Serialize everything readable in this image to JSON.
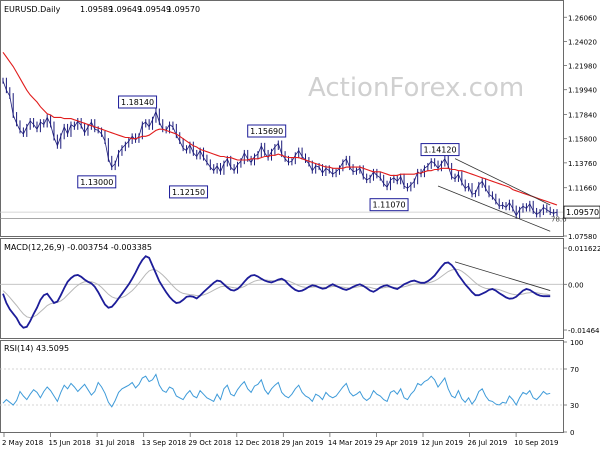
{
  "chart_data": [
    {
      "type": "line",
      "panel": "price",
      "title": "EURUSD.Daily",
      "ohlc": {
        "open": "1.09589",
        "high": "1.09649",
        "low": "1.09549",
        "close": "1.09570"
      },
      "current_price_label": "1.09570",
      "watermark": "ActionForex.com",
      "ylim": [
        1.0758,
        1.2718
      ],
      "y_ticks": [
        "1.26060",
        "1.24020",
        "1.21980",
        "1.19940",
        "1.17840",
        "1.15800",
        "1.13760",
        "1.11660",
        "1.09570",
        "1.07580"
      ],
      "series": [
        {
          "name": "",
          "values": [
            1.207,
            1.199,
            1.194,
            1.178,
            1.171,
            1.165,
            1.162,
            1.168,
            1.173,
            1.17,
            1.166,
            1.172,
            1.17,
            1.176,
            1.17,
            1.159,
            1.152,
            1.16,
            1.168,
            1.162,
            1.17,
            1.168,
            1.173,
            1.169,
            1.163,
            1.168,
            1.172,
            1.166,
            1.165,
            1.162,
            1.156,
            1.141,
            1.134,
            1.137,
            1.146,
            1.15,
            1.153,
            1.156,
            1.16,
            1.157,
            1.16,
            1.17,
            1.172,
            1.168,
            1.174,
            1.181,
            1.172,
            1.166,
            1.165,
            1.17,
            1.168,
            1.161,
            1.156,
            1.15,
            1.148,
            1.153,
            1.146,
            1.143,
            1.148,
            1.142,
            1.138,
            1.134,
            1.131,
            1.135,
            1.13,
            1.137,
            1.141,
            1.134,
            1.131,
            1.136,
            1.139,
            1.146,
            1.141,
            1.138,
            1.143,
            1.145,
            1.152,
            1.146,
            1.142,
            1.147,
            1.151,
            1.154,
            1.145,
            1.141,
            1.138,
            1.139,
            1.144,
            1.148,
            1.143,
            1.14,
            1.137,
            1.131,
            1.135,
            1.134,
            1.129,
            1.133,
            1.131,
            1.128,
            1.13,
            1.133,
            1.138,
            1.141,
            1.134,
            1.13,
            1.131,
            1.133,
            1.126,
            1.123,
            1.125,
            1.13,
            1.127,
            1.125,
            1.12,
            1.117,
            1.123,
            1.125,
            1.122,
            1.126,
            1.118,
            1.116,
            1.119,
            1.122,
            1.13,
            1.128,
            1.133,
            1.135,
            1.139,
            1.137,
            1.133,
            1.137,
            1.141,
            1.135,
            1.126,
            1.124,
            1.128,
            1.121,
            1.116,
            1.118,
            1.111,
            1.112,
            1.119,
            1.122,
            1.116,
            1.111,
            1.109,
            1.105,
            1.101,
            1.102,
            1.1,
            1.104,
            1.099,
            1.093,
            1.098,
            1.101,
            1.099,
            1.103,
            1.097,
            1.094,
            1.096,
            1.1,
            1.098,
            1.096,
            1.095,
            1.096
          ]
        },
        {
          "name": "",
          "values": [
            1.231,
            1.227,
            1.223,
            1.219,
            1.214,
            1.209,
            1.204,
            1.199,
            1.195,
            1.192,
            1.189,
            1.185,
            1.182,
            1.179,
            1.178,
            1.176,
            1.176,
            1.176,
            1.175,
            1.175,
            1.175,
            1.174,
            1.173,
            1.172,
            1.171,
            1.17,
            1.169,
            1.168,
            1.167,
            1.166,
            1.165,
            1.164,
            1.163,
            1.162,
            1.161,
            1.16,
            1.159,
            1.159,
            1.158,
            1.158,
            1.159,
            1.16,
            1.16,
            1.161,
            1.163,
            1.165,
            1.166,
            1.166,
            1.165,
            1.164,
            1.163,
            1.162,
            1.16,
            1.158,
            1.156,
            1.154,
            1.152,
            1.151,
            1.149,
            1.148,
            1.147,
            1.146,
            1.145,
            1.144,
            1.143,
            1.143,
            1.142,
            1.142,
            1.141,
            1.14,
            1.14,
            1.14,
            1.14,
            1.141,
            1.141,
            1.141,
            1.142,
            1.143,
            1.143,
            1.144,
            1.144,
            1.145,
            1.144,
            1.143,
            1.142,
            1.142,
            1.142,
            1.142,
            1.141,
            1.14,
            1.139,
            1.138,
            1.137,
            1.136,
            1.135,
            1.134,
            1.134,
            1.133,
            1.133,
            1.133,
            1.133,
            1.134,
            1.134,
            1.134,
            1.134,
            1.134,
            1.133,
            1.132,
            1.131,
            1.13,
            1.13,
            1.13,
            1.129,
            1.128,
            1.127,
            1.127,
            1.127,
            1.128,
            1.128,
            1.128,
            1.128,
            1.128,
            1.129,
            1.129,
            1.13,
            1.131,
            1.131,
            1.132,
            1.132,
            1.133,
            1.133,
            1.133,
            1.132,
            1.132,
            1.131,
            1.131,
            1.13,
            1.129,
            1.128,
            1.127,
            1.126,
            1.125,
            1.124,
            1.123,
            1.122,
            1.121,
            1.12,
            1.119,
            1.118,
            1.117,
            1.115,
            1.114,
            1.113,
            1.112,
            1.111,
            1.11,
            1.109,
            1.108,
            1.107,
            1.106,
            1.105,
            1.104,
            1.103,
            1.102
          ]
        }
      ],
      "callouts": [
        {
          "label": "1.18140",
          "x_index": 44,
          "value": 1.1814
        },
        {
          "label": "1.13000",
          "x_index": 32,
          "value": 1.13
        },
        {
          "label": "1.12150",
          "x_index": 59,
          "value": 1.1215
        },
        {
          "label": "1.15690",
          "x_index": 82,
          "value": 1.1569
        },
        {
          "label": "1.14120",
          "x_index": 133,
          "value": 1.1412
        },
        {
          "label": "1.11070",
          "x_index": 118,
          "value": 1.1107
        }
      ],
      "fib_label": "78.6",
      "fib_level": 1.0905,
      "channel": {
        "upper": [
          [
            133,
            1.1412
          ],
          [
            161,
            1.102
          ]
        ],
        "lower": [
          [
            128,
            1.118
          ],
          [
            161,
            1.0798
          ]
        ]
      }
    },
    {
      "type": "line",
      "panel": "macd",
      "title": "MACD(12,26,9) -0.003754 -0.003385",
      "y_ticks": [
        "0.011622",
        "0.00",
        "-0.014647"
      ],
      "ylim": [
        -0.0172,
        0.0142
      ],
      "series": [
        {
          "name": "",
          "values": [
            -0.003,
            -0.006,
            -0.008,
            -0.0094,
            -0.0108,
            -0.0128,
            -0.0139,
            -0.0136,
            -0.0118,
            -0.0095,
            -0.0075,
            -0.005,
            -0.0035,
            -0.003,
            -0.0045,
            -0.006,
            -0.0055,
            -0.0035,
            -0.0012,
            0.0008,
            0.002,
            0.0028,
            0.003,
            0.0024,
            0.0015,
            0.0008,
            0.0003,
            -0.0008,
            -0.0025,
            -0.0045,
            -0.0065,
            -0.0075,
            -0.0072,
            -0.006,
            -0.0045,
            -0.003,
            -0.0015,
            0.0,
            0.0018,
            0.0038,
            0.006,
            0.0078,
            0.009,
            0.0085,
            0.006,
            0.0035,
            0.001,
            -0.0008,
            -0.0025,
            -0.004,
            -0.0052,
            -0.006,
            -0.0058,
            -0.005,
            -0.004,
            -0.0038,
            -0.004,
            -0.0045,
            -0.0036,
            -0.0025,
            -0.0015,
            -0.0005,
            0.0005,
            0.0012,
            0.001,
            0.0,
            -0.001,
            -0.0018,
            -0.002,
            -0.0015,
            -0.0005,
            0.0008,
            0.002,
            0.0028,
            0.003,
            0.0025,
            0.0018,
            0.0012,
            0.0008,
            0.0006,
            0.001,
            0.0015,
            0.0018,
            0.0012,
            0.0,
            -0.001,
            -0.0018,
            -0.0022,
            -0.002,
            -0.0015,
            -0.0008,
            -0.0003,
            -0.0005,
            -0.001,
            -0.0014,
            -0.0012,
            -0.0005,
            0.0,
            -0.0005,
            -0.001,
            -0.0015,
            -0.0018,
            -0.0014,
            -0.0008,
            -0.0003,
            0.0,
            -0.0005,
            -0.0012,
            -0.002,
            -0.0024,
            -0.0018,
            -0.001,
            -0.0005,
            -0.0003,
            -0.0008,
            -0.0012,
            -0.0015,
            -0.0008,
            0.0,
            0.0005,
            0.001,
            0.0012,
            0.0008,
            0.0005,
            0.0005,
            0.001,
            0.0018,
            0.0028,
            0.0042,
            0.0056,
            0.0068,
            0.007,
            0.0062,
            0.0048,
            0.003,
            0.0015,
            0.0,
            -0.0012,
            -0.0025,
            -0.0035,
            -0.0035,
            -0.003,
            -0.0025,
            -0.0018,
            -0.0015,
            -0.002,
            -0.0028,
            -0.0035,
            -0.0042,
            -0.0046,
            -0.0045,
            -0.004,
            -0.003,
            -0.002,
            -0.0015,
            -0.0018,
            -0.0025,
            -0.0032,
            -0.0036,
            -0.0038,
            -0.0038,
            -0.0038
          ]
        },
        {
          "name": "",
          "values": [
            -0.002,
            -0.003,
            -0.0042,
            -0.0055,
            -0.0068,
            -0.0082,
            -0.0095,
            -0.0104,
            -0.0107,
            -0.0104,
            -0.0098,
            -0.0088,
            -0.0078,
            -0.0068,
            -0.0062,
            -0.006,
            -0.0058,
            -0.0053,
            -0.0045,
            -0.0034,
            -0.0023,
            -0.0012,
            -0.0003,
            0.0004,
            0.0008,
            0.0009,
            0.0008,
            0.0005,
            -0.0001,
            -0.001,
            -0.0021,
            -0.0032,
            -0.004,
            -0.0044,
            -0.0045,
            -0.0042,
            -0.0037,
            -0.0029,
            -0.002,
            -0.0009,
            0.0004,
            0.0018,
            0.0032,
            0.0043,
            0.0047,
            0.0046,
            0.0039,
            0.003,
            0.0019,
            0.0007,
            -0.0005,
            -0.0016,
            -0.0024,
            -0.0029,
            -0.0031,
            -0.0033,
            -0.0034,
            -0.0036,
            -0.0036,
            -0.0034,
            -0.003,
            -0.0025,
            -0.0019,
            -0.0013,
            -0.0008,
            -0.0006,
            -0.0006,
            -0.0009,
            -0.0011,
            -0.0012,
            -0.0011,
            -0.0007,
            -0.0001,
            0.0005,
            0.001,
            0.0013,
            0.0014,
            0.0014,
            0.0013,
            0.0012,
            0.0011,
            0.0012,
            0.0013,
            0.0013,
            0.0011,
            0.0006,
            0.0001,
            -0.0004,
            -0.0008,
            -0.001,
            -0.001,
            -0.0009,
            -0.0008,
            -0.0009,
            -0.001,
            -0.001,
            -0.0009,
            -0.0007,
            -0.0007,
            -0.0008,
            -0.0009,
            -0.0011,
            -0.0012,
            -0.0011,
            -0.0009,
            -0.0007,
            -0.0007,
            -0.0008,
            -0.001,
            -0.0013,
            -0.0014,
            -0.0013,
            -0.0011,
            -0.0009,
            -0.0009,
            -0.001,
            -0.0011,
            -0.001,
            -0.0008,
            -0.0005,
            -0.0002,
            0.0001,
            0.0002,
            0.0003,
            0.0003,
            0.0004,
            0.0007,
            0.0011,
            0.0017,
            0.0025,
            0.0033,
            0.0041,
            0.0046,
            0.0048,
            0.0047,
            0.0042,
            0.0034,
            0.0025,
            0.0015,
            0.0005,
            -0.0003,
            -0.0009,
            -0.0013,
            -0.0014,
            -0.0014,
            -0.0015,
            -0.0017,
            -0.0021,
            -0.0025,
            -0.0029,
            -0.0032,
            -0.0034,
            -0.0033,
            -0.0031,
            -0.0028,
            -0.0027,
            -0.0026,
            -0.0027,
            -0.0029,
            -0.0031,
            -0.0032,
            -0.0034
          ]
        }
      ],
      "trendline": [
        [
          133,
          0.0072
        ],
        [
          161,
          -0.002
        ]
      ]
    },
    {
      "type": "line",
      "panel": "rsi",
      "title": "RSI(14) 43.5095",
      "y_ticks": [
        "100",
        "70",
        "30",
        "0"
      ],
      "ylim": [
        0,
        100
      ],
      "levels": [
        70,
        30
      ],
      "series": [
        {
          "name": "",
          "values": [
            32,
            36,
            33,
            30,
            35,
            45,
            40,
            36,
            42,
            47,
            44,
            38,
            45,
            50,
            46,
            40,
            34,
            44,
            52,
            48,
            54,
            50,
            45,
            49,
            53,
            47,
            41,
            45,
            55,
            50,
            43,
            33,
            28,
            35,
            44,
            48,
            50,
            52,
            55,
            49,
            53,
            60,
            62,
            56,
            58,
            64,
            52,
            46,
            44,
            50,
            48,
            40,
            38,
            36,
            42,
            46,
            40,
            38,
            46,
            42,
            38,
            36,
            34,
            42,
            36,
            48,
            52,
            42,
            40,
            47,
            52,
            56,
            48,
            44,
            51,
            53,
            58,
            47,
            42,
            48,
            52,
            55,
            44,
            40,
            38,
            42,
            48,
            52,
            44,
            40,
            38,
            34,
            42,
            40,
            36,
            44,
            40,
            38,
            40,
            45,
            50,
            54,
            44,
            40,
            42,
            45,
            38,
            35,
            38,
            46,
            42,
            40,
            36,
            34,
            44,
            46,
            42,
            48,
            38,
            36,
            42,
            46,
            54,
            52,
            56,
            58,
            62,
            58,
            50,
            55,
            60,
            48,
            40,
            38,
            46,
            37,
            33,
            38,
            31,
            36,
            45,
            48,
            40,
            35,
            34,
            31,
            30,
            33,
            32,
            40,
            36,
            30,
            38,
            44,
            42,
            46,
            38,
            36,
            40,
            45,
            42,
            43
          ]
        }
      ]
    }
  ],
  "x_axis": {
    "labels": [
      "2 May 2018",
      "15 Jun 2018",
      "31 Jul 2018",
      "13 Sep 2018",
      "29 Oct 2018",
      "12 Dec 2018",
      "29 Jan 2019",
      "14 Mar 2019",
      "29 Apr 2019",
      "12 Jun 2019",
      "26 Jul 2019",
      "10 Sep 2019"
    ]
  },
  "colors": {
    "price": "#1a1a7a",
    "ma": "#e11d1d",
    "macd": "#1d1d99",
    "signal": "#b8b8b8",
    "rsi": "#3f9bd9",
    "callout_border": "#1d1d99"
  }
}
